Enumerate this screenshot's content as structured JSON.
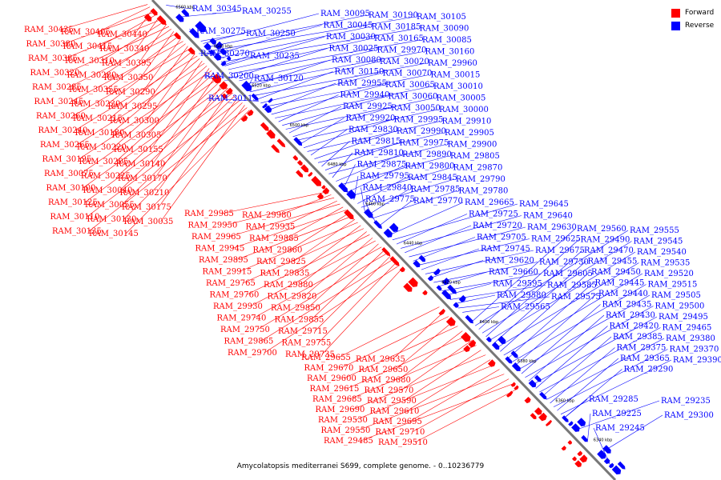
{
  "legend": {
    "items": [
      {
        "label": "Forward",
        "color": "#ff0000"
      },
      {
        "label": "Reverse",
        "color": "#0000ff"
      }
    ]
  },
  "caption": "Amycolatopsis mediterranei S699, complete genome. - 0..10236779",
  "colors": {
    "forward": "#ff0000",
    "reverse": "#0000ff",
    "backbone": "#777777"
  },
  "ticks": [
    "6560 kbp",
    "6540 kbp",
    "6520 kbp",
    "6500 kbp",
    "6480 kbp",
    "6460 kbp",
    "6440 kbp",
    "6420 kbp",
    "6400 kbp",
    "6380 kbp",
    "6360 kbp",
    "6340 kbp"
  ],
  "forward_genes": [
    "RAM_30435",
    "RAM_30405",
    "RAM_30440",
    "RAM_30380",
    "RAM_30415",
    "RAM_30340",
    "RAM_30385",
    "RAM_30310",
    "RAM_30395",
    "RAM_30320",
    "RAM_30280",
    "RAM_30350",
    "RAM_30285",
    "RAM_30355",
    "RAM_30290",
    "RAM_30245",
    "RAM_30230",
    "RAM_30295",
    "RAM_30260",
    "RAM_30215",
    "RAM_30300",
    "RAM_30240",
    "RAM_30180",
    "RAM_30305",
    "RAM_30265",
    "RAM_30220",
    "RAM_30155",
    "RAM_30195",
    "RAM_30205",
    "RAM_30140",
    "RAM_30075",
    "RAM_30225",
    "RAM_30170",
    "RAM_30100",
    "RAM_30040",
    "RAM_30210",
    "RAM_30125",
    "RAM_30055",
    "RAM_30175",
    "RAM_30110",
    "RAM_30130",
    "RAM_30035",
    "RAM_30135",
    "RAM_30145",
    "RAM_29985",
    "RAM_29980",
    "RAM_29950",
    "RAM_29935",
    "RAM_29965",
    "RAM_29885",
    "RAM_29945",
    "RAM_29860",
    "RAM_29895",
    "RAM_29825",
    "RAM_29915",
    "RAM_29835",
    "RAM_29765",
    "RAM_29880",
    "RAM_29760",
    "RAM_29820",
    "RAM_29930",
    "RAM_29850",
    "RAM_29740",
    "RAM_29855",
    "RAM_29750",
    "RAM_29715",
    "RAM_29865",
    "RAM_29755",
    "RAM_29700",
    "RAM_29735",
    "RAM_29655",
    "RAM_29635",
    "RAM_29670",
    "RAM_29650",
    "RAM_29600",
    "RAM_29680",
    "RAM_29615",
    "RAM_29570",
    "RAM_29685",
    "RAM_29590",
    "RAM_29690",
    "RAM_29610",
    "RAM_29530",
    "RAM_29695",
    "RAM_29550",
    "RAM_29710",
    "RAM_29485",
    "RAM_29510"
  ],
  "reverse_genes": [
    "RAM_30345",
    "RAM_30255",
    "RAM_30275",
    "RAM_30250",
    "RAM_30270",
    "RAM_30235",
    "RAM_30200",
    "RAM_30120",
    "RAM_30115",
    "RAM_30095",
    "RAM_30190",
    "RAM_30105",
    "RAM_30045",
    "RAM_30185",
    "RAM_30090",
    "RAM_30030",
    "RAM_30165",
    "RAM_30085",
    "RAM_30025",
    "RAM_29970",
    "RAM_30160",
    "RAM_30080",
    "RAM_30020",
    "RAM_29960",
    "RAM_30150",
    "RAM_30070",
    "RAM_30015",
    "RAM_29955",
    "RAM_30065",
    "RAM_30010",
    "RAM_29940",
    "RAM_30060",
    "RAM_30005",
    "RAM_29925",
    "RAM_30050",
    "RAM_30000",
    "RAM_29920",
    "RAM_29995",
    "RAM_29910",
    "RAM_29830",
    "RAM_29990",
    "RAM_29905",
    "RAM_29815",
    "RAM_29975",
    "RAM_29900",
    "RAM_29810",
    "RAM_29890",
    "RAM_29805",
    "RAM_29875",
    "RAM_29800",
    "RAM_29870",
    "RAM_29795",
    "RAM_29845",
    "RAM_29790",
    "RAM_29840",
    "RAM_29785",
    "RAM_29780",
    "RAM_29775",
    "RAM_29770",
    "RAM_29665",
    "RAM_29645",
    "RAM_29725",
    "RAM_29640",
    "RAM_29720",
    "RAM_29630",
    "RAM_29705",
    "RAM_29625",
    "RAM_29745",
    "RAM_29675",
    "RAM_29620",
    "RAM_29730",
    "RAM_29660",
    "RAM_29605",
    "RAM_29595",
    "RAM_29585",
    "RAM_29580",
    "RAM_29575",
    "RAM_29565",
    "RAM_29560",
    "RAM_29555",
    "RAM_29490",
    "RAM_29545",
    "RAM_29470",
    "RAM_29540",
    "RAM_29455",
    "RAM_29535",
    "RAM_29450",
    "RAM_29520",
    "RAM_29445",
    "RAM_29515",
    "RAM_29440",
    "RAM_29505",
    "RAM_29435",
    "RAM_29500",
    "RAM_29430",
    "RAM_29495",
    "RAM_29420",
    "RAM_29465",
    "RAM_29385",
    "RAM_29380",
    "RAM_29375",
    "RAM_29370",
    "RAM_29365",
    "RAM_29390",
    "RAM_29290",
    "RAM_29285",
    "RAM_29235",
    "RAM_29225",
    "RAM_29300",
    "RAM_29245"
  ]
}
